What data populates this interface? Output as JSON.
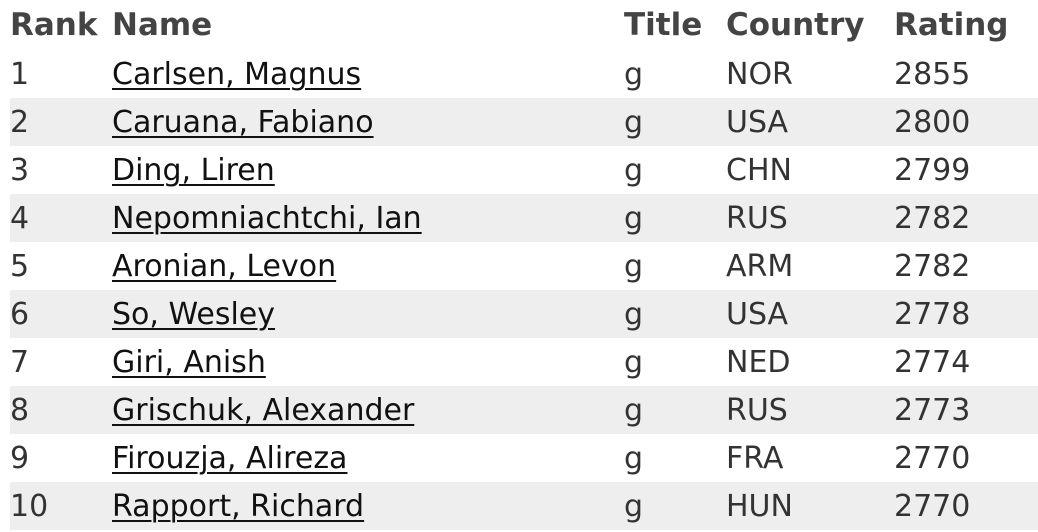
{
  "table": {
    "headers": {
      "rank": "Rank",
      "name": "Name",
      "title": "Title",
      "country": "Country",
      "rating": "Rating"
    },
    "rows": [
      {
        "rank": "1",
        "name": "Carlsen, Magnus",
        "title": "g",
        "country": "NOR",
        "rating": "2855"
      },
      {
        "rank": "2",
        "name": "Caruana, Fabiano",
        "title": "g",
        "country": "USA",
        "rating": "2800"
      },
      {
        "rank": "3",
        "name": "Ding, Liren",
        "title": "g",
        "country": "CHN",
        "rating": "2799"
      },
      {
        "rank": "4",
        "name": "Nepomniachtchi, Ian",
        "title": "g",
        "country": "RUS",
        "rating": "2782"
      },
      {
        "rank": "5",
        "name": "Aronian, Levon",
        "title": "g",
        "country": "ARM",
        "rating": "2782"
      },
      {
        "rank": "6",
        "name": "So, Wesley",
        "title": "g",
        "country": "USA",
        "rating": "2778"
      },
      {
        "rank": "7",
        "name": "Giri, Anish",
        "title": "g",
        "country": "NED",
        "rating": "2774"
      },
      {
        "rank": "8",
        "name": "Grischuk, Alexander",
        "title": "g",
        "country": "RUS",
        "rating": "2773"
      },
      {
        "rank": "9",
        "name": "Firouzja, Alireza",
        "title": "g",
        "country": "FRA",
        "rating": "2770"
      },
      {
        "rank": "10",
        "name": "Rapport, Richard",
        "title": "g",
        "country": "HUN",
        "rating": "2770"
      }
    ]
  },
  "colors": {
    "alternate_row_background": "#eeeeee",
    "header_text": "#444444",
    "link_text": "#111111"
  }
}
